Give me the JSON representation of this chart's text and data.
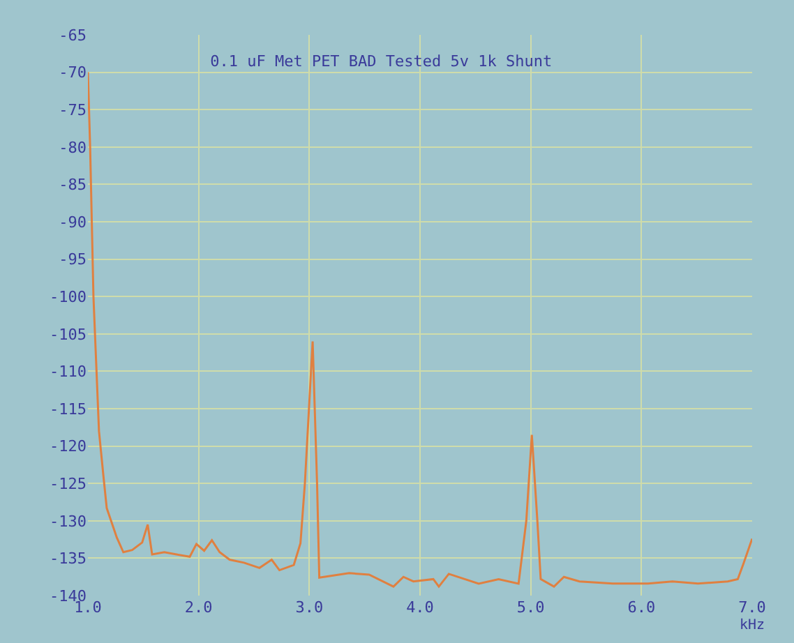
{
  "chart_data": {
    "type": "line",
    "title": "0.1 uF Met PET BAD Tested 5v 1k Shunt",
    "xlabel": "kHz",
    "x": [
      1.0,
      1.02,
      1.05,
      1.1,
      1.14,
      1.17,
      1.26,
      1.32,
      1.4,
      1.49,
      1.54,
      1.58,
      1.69,
      1.8,
      1.92,
      1.98,
      2.05,
      2.12,
      2.19,
      2.28,
      2.41,
      2.55,
      2.66,
      2.73,
      2.86,
      2.92,
      2.96,
      3.03,
      3.07,
      3.09,
      3.36,
      3.54,
      3.76,
      3.85,
      3.94,
      4.12,
      4.17,
      4.26,
      4.53,
      4.71,
      4.89,
      4.96,
      5.01,
      5.06,
      5.09,
      5.21,
      5.3,
      5.44,
      5.74,
      6.06,
      6.28,
      6.51,
      6.78,
      6.87,
      6.92,
      7.0
    ],
    "series": [
      {
        "color": "#e08040",
        "values": [
          -70,
          -80,
          -100,
          -118,
          -124,
          -128.3,
          -132.2,
          -134.2,
          -133.9,
          -132.9,
          -130.5,
          -134.5,
          -134.2,
          -134.5,
          -134.8,
          -133.1,
          -134,
          -132.6,
          -134.2,
          -135.2,
          -135.6,
          -136.3,
          -135.2,
          -136.6,
          -135.9,
          -133,
          -125,
          -106,
          -125,
          -137.6,
          -137,
          -137.2,
          -138.8,
          -137.5,
          -138.1,
          -137.8,
          -138.8,
          -137.1,
          -138.4,
          -137.8,
          -138.4,
          -130,
          -118.5,
          -130,
          -137.8,
          -138.8,
          -137.5,
          -138.1,
          -138.4,
          -138.4,
          -138.1,
          -138.4,
          -138.1,
          -137.8,
          -135.8,
          -132.4
        ]
      }
    ],
    "xlim": [
      1,
      7
    ],
    "xticks": [
      {
        "value": 1,
        "label": "1.0"
      },
      {
        "value": 2,
        "label": "2.0"
      },
      {
        "value": 3,
        "label": "3.0"
      },
      {
        "value": 4,
        "label": "4.0"
      },
      {
        "value": 5,
        "label": "5.0"
      },
      {
        "value": 6,
        "label": "6.0"
      },
      {
        "value": 7,
        "label": "7.0"
      }
    ],
    "ylim": [
      -140,
      -65
    ],
    "yticks": [
      -140,
      -135,
      -130,
      -125,
      -120,
      -115,
      -110,
      -105,
      -100,
      -95,
      -90,
      -85,
      -80,
      -75,
      -70,
      -65
    ],
    "grid": true,
    "marker": "none",
    "line_style": "solid"
  }
}
